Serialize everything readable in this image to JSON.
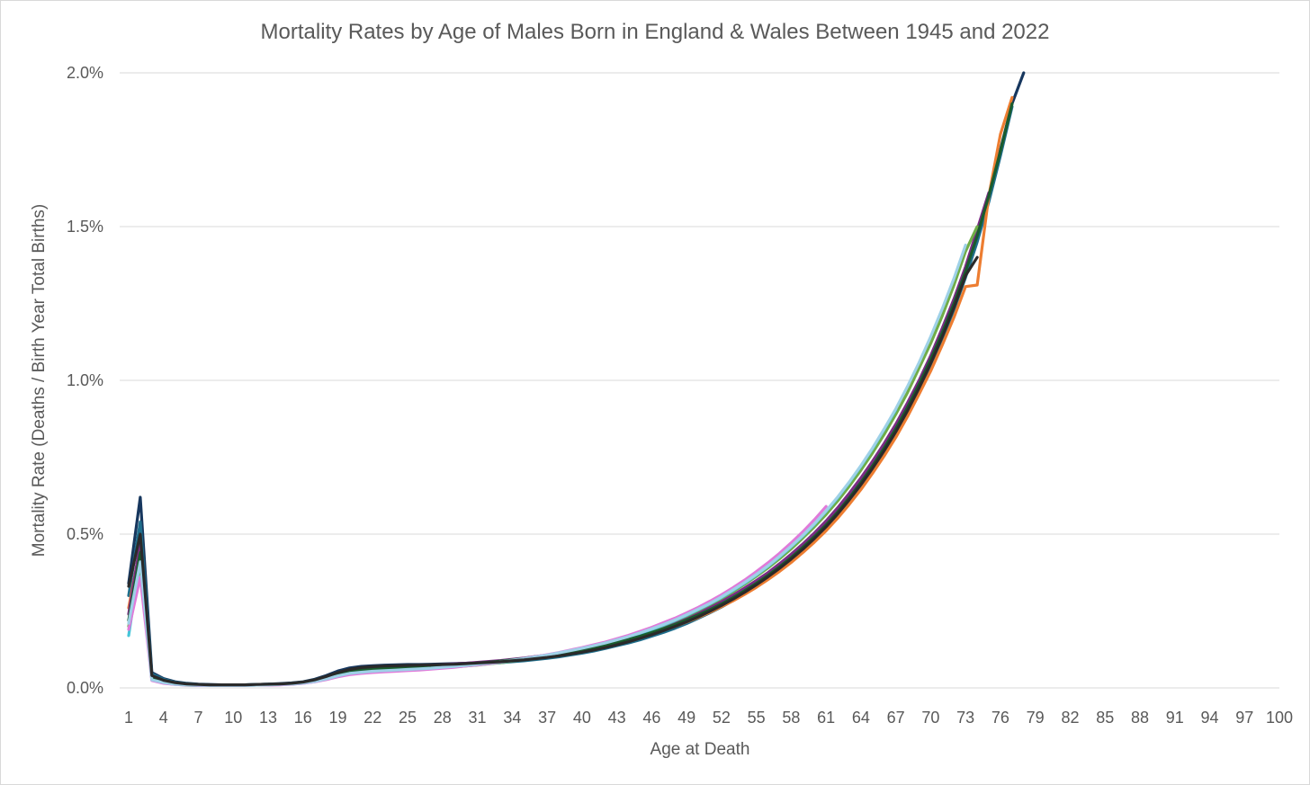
{
  "chart_data": {
    "type": "line",
    "title": "Mortality Rates by Age of Males Born in England & Wales Between 1945 and 2022",
    "xlabel": "Age at Death",
    "ylabel": "Mortality Rate (Deaths / Birth Year Total Births)",
    "x_tick_labels": [
      "1",
      "4",
      "7",
      "10",
      "13",
      "16",
      "19",
      "22",
      "25",
      "28",
      "31",
      "34",
      "37",
      "40",
      "43",
      "46",
      "49",
      "52",
      "55",
      "58",
      "61",
      "64",
      "67",
      "70",
      "73",
      "76",
      "79",
      "82",
      "85",
      "88",
      "91",
      "94",
      "97",
      "100"
    ],
    "y_tick_labels": [
      "0.0%",
      "0.5%",
      "1.0%",
      "1.5%",
      "2.0%"
    ],
    "xlim": [
      1,
      100
    ],
    "ylim": [
      0,
      2.0
    ],
    "y_unit": "%",
    "grid": "horizontal",
    "legend": "none",
    "series": [
      {
        "color": "#17375e",
        "values": [
          0.34,
          0.62,
          0.05,
          0.03,
          0.02,
          0.015,
          0.012,
          0.011,
          0.01,
          0.01,
          0.01,
          0.011,
          0.012,
          0.014,
          0.016,
          0.02,
          0.028,
          0.04,
          0.055,
          0.065,
          0.07,
          0.072,
          0.074,
          0.075,
          0.076,
          0.076,
          0.077,
          0.078,
          0.079,
          0.08,
          0.082,
          0.084,
          0.086,
          0.088,
          0.09,
          0.093,
          0.097,
          0.102,
          0.108,
          0.114,
          0.121,
          0.129,
          0.138,
          0.148,
          0.159,
          0.171,
          0.184,
          0.198,
          0.214,
          0.231,
          0.249,
          0.269,
          0.291,
          0.314,
          0.339,
          0.366,
          0.395,
          0.426,
          0.459,
          0.494,
          0.532,
          0.575,
          0.622,
          0.672,
          0.725,
          0.782,
          0.845,
          0.915,
          0.99,
          1.07,
          1.155,
          1.25,
          1.355,
          1.47,
          1.6,
          1.75,
          1.9,
          2.0
        ]
      },
      {
        "color": "#1f6e8c",
        "values": [
          0.3,
          0.54,
          0.045,
          0.028,
          0.018,
          0.014,
          0.011,
          0.01,
          0.01,
          0.01,
          0.01,
          0.011,
          0.012,
          0.013,
          0.015,
          0.019,
          0.026,
          0.036,
          0.048,
          0.058,
          0.063,
          0.066,
          0.068,
          0.069,
          0.07,
          0.071,
          0.072,
          0.073,
          0.074,
          0.076,
          0.078,
          0.08,
          0.082,
          0.085,
          0.088,
          0.092,
          0.096,
          0.101,
          0.107,
          0.113,
          0.12,
          0.128,
          0.137,
          0.146,
          0.156,
          0.168,
          0.18,
          0.194,
          0.209,
          0.226,
          0.244,
          0.263,
          0.284,
          0.307,
          0.332,
          0.358,
          0.386,
          0.416,
          0.448,
          0.483,
          0.52,
          0.562,
          0.608,
          0.657,
          0.71,
          0.766,
          0.828,
          0.896,
          0.97,
          1.05,
          1.135,
          1.23,
          1.335,
          1.45,
          1.58,
          1.73,
          1.89
        ]
      },
      {
        "color": "#ed7d31",
        "values": [
          0.26,
          0.46,
          0.035,
          0.022,
          0.015,
          0.012,
          0.01,
          0.009,
          0.009,
          0.009,
          0.009,
          0.01,
          0.011,
          0.012,
          0.014,
          0.018,
          0.024,
          0.033,
          0.044,
          0.052,
          0.057,
          0.06,
          0.062,
          0.064,
          0.066,
          0.068,
          0.07,
          0.072,
          0.074,
          0.077,
          0.08,
          0.083,
          0.086,
          0.09,
          0.094,
          0.099,
          0.104,
          0.11,
          0.116,
          0.123,
          0.13,
          0.138,
          0.146,
          0.155,
          0.165,
          0.175,
          0.187,
          0.2,
          0.214,
          0.229,
          0.246,
          0.264,
          0.283,
          0.304,
          0.327,
          0.352,
          0.379,
          0.408,
          0.44,
          0.474,
          0.511,
          0.552,
          0.597,
          0.645,
          0.698,
          0.754,
          0.815,
          0.882,
          0.955,
          1.03,
          1.115,
          1.205,
          1.305,
          1.31,
          1.6,
          1.8,
          1.92
        ]
      },
      {
        "color": "#7b2c83",
        "values": [
          0.24,
          0.47,
          0.032,
          0.02,
          0.014,
          0.011,
          0.01,
          0.009,
          0.009,
          0.009,
          0.009,
          0.01,
          0.011,
          0.012,
          0.014,
          0.018,
          0.024,
          0.034,
          0.046,
          0.056,
          0.061,
          0.064,
          0.066,
          0.068,
          0.07,
          0.072,
          0.074,
          0.076,
          0.078,
          0.08,
          0.083,
          0.086,
          0.089,
          0.093,
          0.097,
          0.102,
          0.107,
          0.113,
          0.12,
          0.127,
          0.135,
          0.144,
          0.153,
          0.163,
          0.174,
          0.186,
          0.199,
          0.213,
          0.228,
          0.244,
          0.262,
          0.281,
          0.302,
          0.325,
          0.349,
          0.375,
          0.404,
          0.435,
          0.468,
          0.504,
          0.543,
          0.586,
          0.633,
          0.683,
          0.737,
          0.795,
          0.858,
          0.927,
          1.0,
          1.08,
          1.17,
          1.265,
          1.37,
          1.49,
          1.61
        ]
      },
      {
        "color": "#70ad47",
        "values": [
          0.2,
          0.4,
          0.028,
          0.018,
          0.012,
          0.01,
          0.009,
          0.008,
          0.008,
          0.008,
          0.008,
          0.009,
          0.01,
          0.011,
          0.013,
          0.016,
          0.021,
          0.03,
          0.04,
          0.048,
          0.052,
          0.055,
          0.057,
          0.058,
          0.06,
          0.062,
          0.064,
          0.066,
          0.068,
          0.071,
          0.074,
          0.078,
          0.082,
          0.087,
          0.092,
          0.098,
          0.104,
          0.111,
          0.118,
          0.126,
          0.134,
          0.143,
          0.153,
          0.164,
          0.176,
          0.189,
          0.203,
          0.218,
          0.234,
          0.252,
          0.271,
          0.291,
          0.313,
          0.337,
          0.363,
          0.39,
          0.42,
          0.452,
          0.487,
          0.524,
          0.564,
          0.608,
          0.656,
          0.708,
          0.764,
          0.824,
          0.89,
          0.96,
          1.04,
          1.12,
          1.21,
          1.31,
          1.42,
          1.5
        ]
      },
      {
        "color": "#44c6d9",
        "values": [
          0.17,
          0.42,
          0.025,
          0.016,
          0.011,
          0.009,
          0.008,
          0.008,
          0.008,
          0.008,
          0.008,
          0.009,
          0.01,
          0.011,
          0.012,
          0.015,
          0.02,
          0.028,
          0.038,
          0.046,
          0.05,
          0.053,
          0.055,
          0.057,
          0.059,
          0.061,
          0.063,
          0.066,
          0.069,
          0.072,
          0.075,
          0.079,
          0.083,
          0.088,
          0.093,
          0.099,
          0.105,
          0.112,
          0.119,
          0.127,
          0.135,
          0.144,
          0.154,
          0.165,
          0.177,
          0.19,
          0.204,
          0.219,
          0.236,
          0.254,
          0.273,
          0.294,
          0.317,
          0.341,
          0.367,
          0.395,
          0.426,
          0.459,
          0.494,
          0.532,
          0.574,
          0.619,
          0.668,
          0.721,
          0.778,
          0.84,
          0.905
        ]
      },
      {
        "color": "#e07ad9",
        "values": [
          0.19,
          0.36,
          0.024,
          0.015,
          0.011,
          0.009,
          0.008,
          0.008,
          0.008,
          0.008,
          0.008,
          0.009,
          0.009,
          0.01,
          0.012,
          0.015,
          0.02,
          0.027,
          0.036,
          0.043,
          0.047,
          0.05,
          0.052,
          0.054,
          0.056,
          0.058,
          0.061,
          0.064,
          0.067,
          0.071,
          0.075,
          0.079,
          0.084,
          0.089,
          0.095,
          0.101,
          0.108,
          0.115,
          0.123,
          0.131,
          0.14,
          0.149,
          0.16,
          0.171,
          0.184,
          0.197,
          0.212,
          0.227,
          0.244,
          0.262,
          0.282,
          0.303,
          0.326,
          0.351,
          0.378,
          0.407,
          0.438,
          0.472,
          0.508,
          0.547,
          0.59
        ]
      },
      {
        "color": "#1a5c2e",
        "values": [
          0.22,
          0.44,
          0.03,
          0.019,
          0.013,
          0.01,
          0.009,
          0.009,
          0.009,
          0.009,
          0.009,
          0.01,
          0.011,
          0.012,
          0.014,
          0.017,
          0.023,
          0.032,
          0.043,
          0.052,
          0.057,
          0.06,
          0.063,
          0.065,
          0.067,
          0.069,
          0.071,
          0.073,
          0.075,
          0.078,
          0.081,
          0.084,
          0.087,
          0.091,
          0.095,
          0.1,
          0.105,
          0.111,
          0.117,
          0.124,
          0.131,
          0.139,
          0.148,
          0.158,
          0.168,
          0.18,
          0.192,
          0.206,
          0.221,
          0.237,
          0.254,
          0.273,
          0.294,
          0.316,
          0.34,
          0.366,
          0.394,
          0.424,
          0.457,
          0.492,
          0.53,
          0.572,
          0.618,
          0.668,
          0.722,
          0.78,
          0.843,
          0.912,
          0.987,
          1.068,
          1.155,
          1.25,
          1.355,
          1.47,
          1.6,
          1.745,
          1.9
        ]
      },
      {
        "color": "#9fd1e8",
        "values": [
          0.21,
          0.41,
          0.026,
          0.017,
          0.012,
          0.01,
          0.009,
          0.008,
          0.008,
          0.008,
          0.008,
          0.009,
          0.01,
          0.011,
          0.013,
          0.016,
          0.021,
          0.029,
          0.039,
          0.047,
          0.051,
          0.054,
          0.056,
          0.058,
          0.06,
          0.062,
          0.064,
          0.067,
          0.07,
          0.073,
          0.077,
          0.081,
          0.085,
          0.09,
          0.095,
          0.101,
          0.107,
          0.114,
          0.121,
          0.129,
          0.137,
          0.146,
          0.156,
          0.167,
          0.179,
          0.192,
          0.206,
          0.221,
          0.238,
          0.256,
          0.275,
          0.296,
          0.319,
          0.343,
          0.369,
          0.397,
          0.428,
          0.461,
          0.496,
          0.534,
          0.576,
          0.621,
          0.67,
          0.723,
          0.78,
          0.842,
          0.908,
          0.98,
          1.058,
          1.142,
          1.233,
          1.332,
          1.44
        ]
      },
      {
        "color": "#2a2a2a",
        "values": [
          0.33,
          0.5,
          0.04,
          0.025,
          0.017,
          0.013,
          0.011,
          0.01,
          0.01,
          0.01,
          0.01,
          0.011,
          0.012,
          0.013,
          0.015,
          0.019,
          0.026,
          0.037,
          0.05,
          0.06,
          0.066,
          0.069,
          0.071,
          0.072,
          0.073,
          0.074,
          0.075,
          0.076,
          0.077,
          0.079,
          0.081,
          0.083,
          0.085,
          0.088,
          0.091,
          0.095,
          0.099,
          0.104,
          0.11,
          0.116,
          0.123,
          0.131,
          0.14,
          0.15,
          0.161,
          0.173,
          0.186,
          0.2,
          0.215,
          0.231,
          0.249,
          0.268,
          0.289,
          0.311,
          0.335,
          0.361,
          0.389,
          0.419,
          0.451,
          0.486,
          0.524,
          0.566,
          0.612,
          0.661,
          0.714,
          0.771,
          0.833,
          0.901,
          0.975,
          1.055,
          1.142,
          1.237,
          1.341,
          1.4
        ]
      }
    ]
  }
}
